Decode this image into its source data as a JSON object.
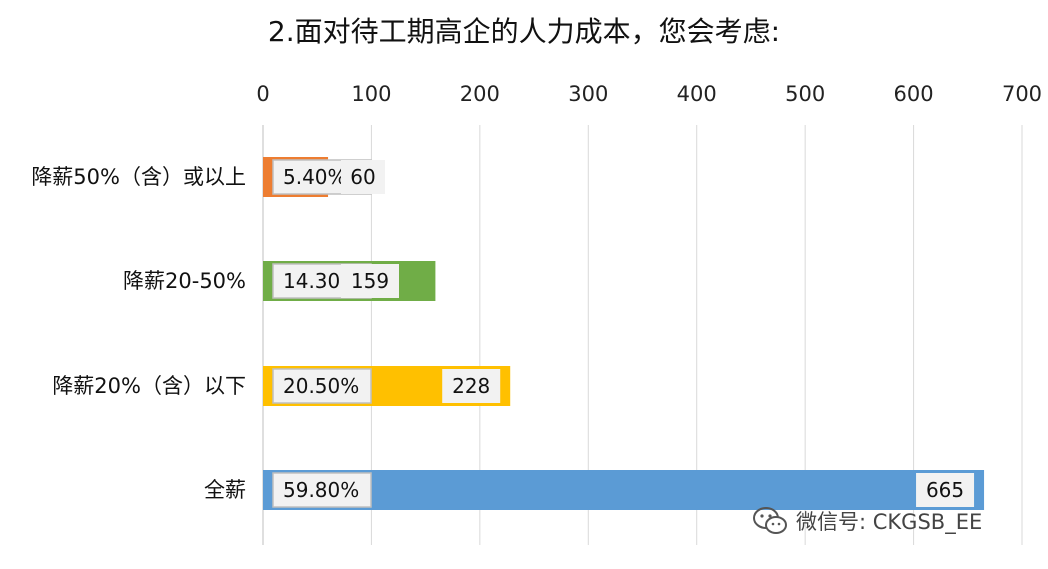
{
  "chart_data": {
    "type": "bar",
    "orientation": "horizontal",
    "title": "2.面对待工期高企的人力成本，您会考虑:",
    "categories": [
      "降薪50%（含）或以上",
      "降薪20-50%",
      "降薪20%（含）以下",
      "全薪"
    ],
    "values": [
      60,
      159,
      228,
      665
    ],
    "percent_labels": [
      "5.40%",
      "14.30%",
      "20.50%",
      "59.80%"
    ],
    "value_labels": [
      "60",
      "159",
      "228",
      "665"
    ],
    "colors": [
      "#ED7D31",
      "#70AD47",
      "#FFC000",
      "#5B9BD5"
    ],
    "xlim": [
      0,
      700
    ],
    "x_ticks": [
      "0",
      "100",
      "200",
      "300",
      "400",
      "500",
      "600",
      "700"
    ],
    "grid": true,
    "xaxis_position": "top"
  },
  "watermark": {
    "text": "微信号: CKGSB_EE",
    "icon": "wechat-icon"
  }
}
